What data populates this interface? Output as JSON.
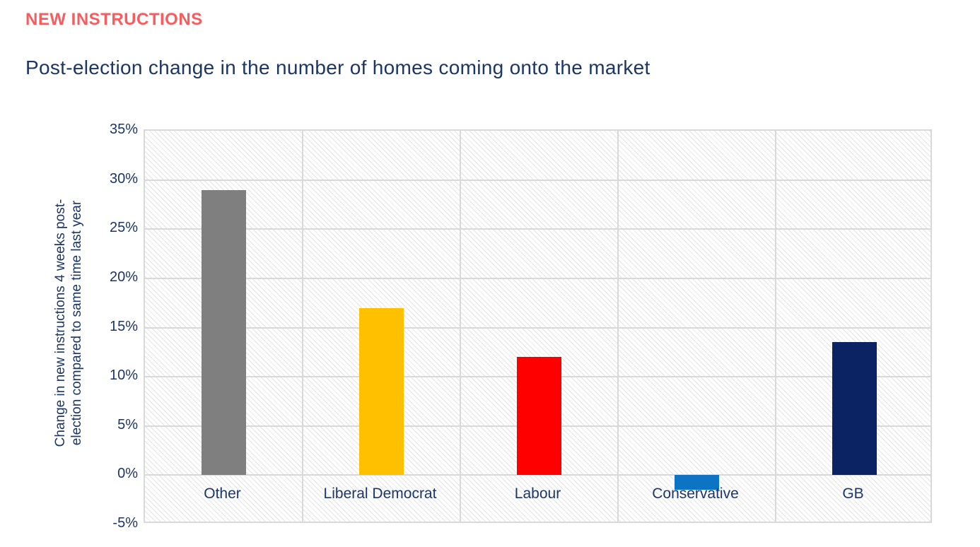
{
  "header": {
    "kicker": "NEW INSTRUCTIONS",
    "title": "Post-election change in the number of homes coming onto the market"
  },
  "colors": {
    "kicker_red": "#F95C5E",
    "text_navy": "#1C3667",
    "gridline": "#D9D9D9",
    "plot_hatch": "#E4E4E4"
  },
  "chart_data": {
    "type": "bar",
    "categories": [
      "Other",
      "Liberal Democrat",
      "Labour",
      "Conservative",
      "GB"
    ],
    "values": [
      29,
      17,
      12,
      -1.5,
      13.5
    ],
    "bar_colors": [
      "#7F7F7F",
      "#FFC000",
      "#FF0000",
      "#0D73C4",
      "#0C2363"
    ],
    "title": "Post-election change in the number of homes coming onto the market",
    "xlabel": "",
    "ylabel": "Change in new instructions 4 weeks post-election compared to same time last year",
    "ylabel_line1": "Change in new instructions 4 weeks post-",
    "ylabel_line2": "election compared to same time last year",
    "ylim": [
      -5,
      35
    ],
    "ytick_step": 5,
    "ytick_labels": [
      "35%",
      "30%",
      "25%",
      "20%",
      "15%",
      "10%",
      "5%",
      "0%",
      "-5%"
    ],
    "grid": true,
    "legend": "none",
    "plot_background": "diagonal-hatch"
  }
}
